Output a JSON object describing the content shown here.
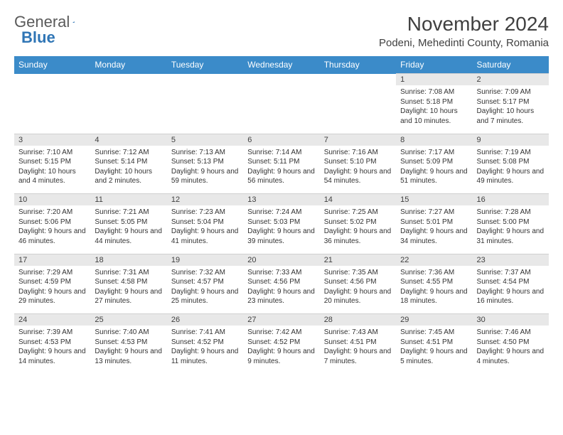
{
  "logo": {
    "text_general": "General",
    "text_blue": "Blue"
  },
  "title": "November 2024",
  "location": "Podeni, Mehedinti County, Romania",
  "colors": {
    "header_bg": "#3b8bc9",
    "header_text": "#ffffff",
    "daynum_bg": "#e8e8e8",
    "text": "#333333",
    "page_bg": "#ffffff"
  },
  "weekdays": [
    "Sunday",
    "Monday",
    "Tuesday",
    "Wednesday",
    "Thursday",
    "Friday",
    "Saturday"
  ],
  "weeks": [
    [
      null,
      null,
      null,
      null,
      null,
      {
        "n": "1",
        "sunrise": "Sunrise: 7:08 AM",
        "sunset": "Sunset: 5:18 PM",
        "daylight": "Daylight: 10 hours and 10 minutes."
      },
      {
        "n": "2",
        "sunrise": "Sunrise: 7:09 AM",
        "sunset": "Sunset: 5:17 PM",
        "daylight": "Daylight: 10 hours and 7 minutes."
      }
    ],
    [
      {
        "n": "3",
        "sunrise": "Sunrise: 7:10 AM",
        "sunset": "Sunset: 5:15 PM",
        "daylight": "Daylight: 10 hours and 4 minutes."
      },
      {
        "n": "4",
        "sunrise": "Sunrise: 7:12 AM",
        "sunset": "Sunset: 5:14 PM",
        "daylight": "Daylight: 10 hours and 2 minutes."
      },
      {
        "n": "5",
        "sunrise": "Sunrise: 7:13 AM",
        "sunset": "Sunset: 5:13 PM",
        "daylight": "Daylight: 9 hours and 59 minutes."
      },
      {
        "n": "6",
        "sunrise": "Sunrise: 7:14 AM",
        "sunset": "Sunset: 5:11 PM",
        "daylight": "Daylight: 9 hours and 56 minutes."
      },
      {
        "n": "7",
        "sunrise": "Sunrise: 7:16 AM",
        "sunset": "Sunset: 5:10 PM",
        "daylight": "Daylight: 9 hours and 54 minutes."
      },
      {
        "n": "8",
        "sunrise": "Sunrise: 7:17 AM",
        "sunset": "Sunset: 5:09 PM",
        "daylight": "Daylight: 9 hours and 51 minutes."
      },
      {
        "n": "9",
        "sunrise": "Sunrise: 7:19 AM",
        "sunset": "Sunset: 5:08 PM",
        "daylight": "Daylight: 9 hours and 49 minutes."
      }
    ],
    [
      {
        "n": "10",
        "sunrise": "Sunrise: 7:20 AM",
        "sunset": "Sunset: 5:06 PM",
        "daylight": "Daylight: 9 hours and 46 minutes."
      },
      {
        "n": "11",
        "sunrise": "Sunrise: 7:21 AM",
        "sunset": "Sunset: 5:05 PM",
        "daylight": "Daylight: 9 hours and 44 minutes."
      },
      {
        "n": "12",
        "sunrise": "Sunrise: 7:23 AM",
        "sunset": "Sunset: 5:04 PM",
        "daylight": "Daylight: 9 hours and 41 minutes."
      },
      {
        "n": "13",
        "sunrise": "Sunrise: 7:24 AM",
        "sunset": "Sunset: 5:03 PM",
        "daylight": "Daylight: 9 hours and 39 minutes."
      },
      {
        "n": "14",
        "sunrise": "Sunrise: 7:25 AM",
        "sunset": "Sunset: 5:02 PM",
        "daylight": "Daylight: 9 hours and 36 minutes."
      },
      {
        "n": "15",
        "sunrise": "Sunrise: 7:27 AM",
        "sunset": "Sunset: 5:01 PM",
        "daylight": "Daylight: 9 hours and 34 minutes."
      },
      {
        "n": "16",
        "sunrise": "Sunrise: 7:28 AM",
        "sunset": "Sunset: 5:00 PM",
        "daylight": "Daylight: 9 hours and 31 minutes."
      }
    ],
    [
      {
        "n": "17",
        "sunrise": "Sunrise: 7:29 AM",
        "sunset": "Sunset: 4:59 PM",
        "daylight": "Daylight: 9 hours and 29 minutes."
      },
      {
        "n": "18",
        "sunrise": "Sunrise: 7:31 AM",
        "sunset": "Sunset: 4:58 PM",
        "daylight": "Daylight: 9 hours and 27 minutes."
      },
      {
        "n": "19",
        "sunrise": "Sunrise: 7:32 AM",
        "sunset": "Sunset: 4:57 PM",
        "daylight": "Daylight: 9 hours and 25 minutes."
      },
      {
        "n": "20",
        "sunrise": "Sunrise: 7:33 AM",
        "sunset": "Sunset: 4:56 PM",
        "daylight": "Daylight: 9 hours and 23 minutes."
      },
      {
        "n": "21",
        "sunrise": "Sunrise: 7:35 AM",
        "sunset": "Sunset: 4:56 PM",
        "daylight": "Daylight: 9 hours and 20 minutes."
      },
      {
        "n": "22",
        "sunrise": "Sunrise: 7:36 AM",
        "sunset": "Sunset: 4:55 PM",
        "daylight": "Daylight: 9 hours and 18 minutes."
      },
      {
        "n": "23",
        "sunrise": "Sunrise: 7:37 AM",
        "sunset": "Sunset: 4:54 PM",
        "daylight": "Daylight: 9 hours and 16 minutes."
      }
    ],
    [
      {
        "n": "24",
        "sunrise": "Sunrise: 7:39 AM",
        "sunset": "Sunset: 4:53 PM",
        "daylight": "Daylight: 9 hours and 14 minutes."
      },
      {
        "n": "25",
        "sunrise": "Sunrise: 7:40 AM",
        "sunset": "Sunset: 4:53 PM",
        "daylight": "Daylight: 9 hours and 13 minutes."
      },
      {
        "n": "26",
        "sunrise": "Sunrise: 7:41 AM",
        "sunset": "Sunset: 4:52 PM",
        "daylight": "Daylight: 9 hours and 11 minutes."
      },
      {
        "n": "27",
        "sunrise": "Sunrise: 7:42 AM",
        "sunset": "Sunset: 4:52 PM",
        "daylight": "Daylight: 9 hours and 9 minutes."
      },
      {
        "n": "28",
        "sunrise": "Sunrise: 7:43 AM",
        "sunset": "Sunset: 4:51 PM",
        "daylight": "Daylight: 9 hours and 7 minutes."
      },
      {
        "n": "29",
        "sunrise": "Sunrise: 7:45 AM",
        "sunset": "Sunset: 4:51 PM",
        "daylight": "Daylight: 9 hours and 5 minutes."
      },
      {
        "n": "30",
        "sunrise": "Sunrise: 7:46 AM",
        "sunset": "Sunset: 4:50 PM",
        "daylight": "Daylight: 9 hours and 4 minutes."
      }
    ]
  ]
}
